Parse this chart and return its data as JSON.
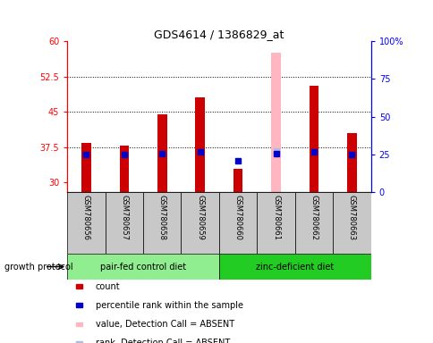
{
  "title": "GDS4614 / 1386829_at",
  "samples": [
    "GSM780656",
    "GSM780657",
    "GSM780658",
    "GSM780659",
    "GSM780660",
    "GSM780661",
    "GSM780662",
    "GSM780663"
  ],
  "count_values": [
    38.5,
    37.8,
    44.5,
    48.0,
    33.0,
    null,
    50.5,
    40.5
  ],
  "rank_values": [
    25.0,
    25.0,
    25.5,
    26.5,
    21.0,
    25.5,
    26.5,
    25.0
  ],
  "absent_count": [
    null,
    null,
    null,
    null,
    null,
    57.5,
    null,
    null
  ],
  "absent_rank": [
    null,
    null,
    null,
    null,
    null,
    27.0,
    null,
    null
  ],
  "ylim_left": [
    28,
    60
  ],
  "ylim_right": [
    0,
    100
  ],
  "yticks_left": [
    30,
    37.5,
    45,
    52.5,
    60
  ],
  "yticks_right": [
    0,
    25,
    50,
    75,
    100
  ],
  "ytick_labels_left": [
    "30",
    "37.5",
    "45",
    "52.5",
    "60"
  ],
  "ytick_labels_right": [
    "0",
    "25",
    "50",
    "75",
    "100%"
  ],
  "group1_label": "pair-fed control diet",
  "group2_label": "zinc-deficient diet",
  "group1_indices": [
    0,
    1,
    2,
    3
  ],
  "group2_indices": [
    4,
    5,
    6,
    7
  ],
  "group1_color": "#90EE90",
  "group2_color": "#22CC22",
  "bar_bottom": 28,
  "count_color": "#CC0000",
  "rank_color": "#0000CC",
  "absent_count_color": "#FFB6C1",
  "absent_rank_color": "#AABEDD",
  "bg_label_color": "#C8C8C8",
  "legend_items": [
    {
      "label": "count",
      "color": "#CC0000"
    },
    {
      "label": "percentile rank within the sample",
      "color": "#0000CC"
    },
    {
      "label": "value, Detection Call = ABSENT",
      "color": "#FFB6C1"
    },
    {
      "label": "rank, Detection Call = ABSENT",
      "color": "#AABEDD"
    }
  ]
}
